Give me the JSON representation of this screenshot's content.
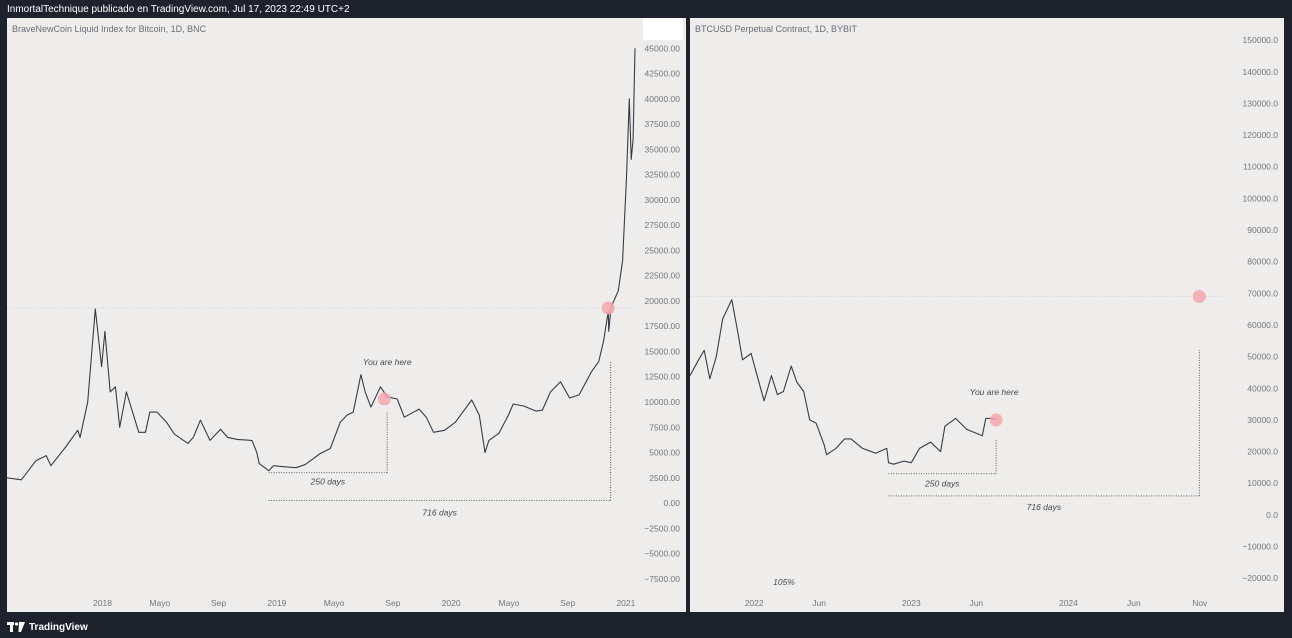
{
  "header": {
    "text": "InmortalTechnique publicado en TradingView.com, Jul 17, 2023 22:49 UTC+2"
  },
  "footer": {
    "brand": "TradingView",
    "logo_icon": "tradingview-logo-icon"
  },
  "colors": {
    "background": "#1e222d",
    "panel": "#eeedeb",
    "line": "#3a3a48",
    "axis_text": "#74767e",
    "marker": "#f4a6ad",
    "dotted": "#4a4a4a"
  },
  "chart_data": [
    {
      "type": "line",
      "title": "BraveNewCoin Liquid Index for Bitcoin, 1D, BNC",
      "ylim": [
        -9000,
        48000
      ],
      "y_ticks": [
        45000,
        42500,
        40000,
        37500,
        35000,
        32500,
        30000,
        27500,
        25000,
        22500,
        20000,
        17500,
        15000,
        12500,
        10000,
        7500,
        5000,
        2500,
        0,
        -2500,
        -5000,
        -7500
      ],
      "y_tick_labels": [
        "45000.00",
        "42500.00",
        "40000.00",
        "37500.00",
        "35000.00",
        "32500.00",
        "30000.00",
        "27500.00",
        "25000.00",
        "22500.00",
        "20000.00",
        "17500.00",
        "15000.00",
        "12500.00",
        "10000.00",
        "7500.00",
        "5000.00",
        "2500.00",
        "0.00",
        "−2500.00",
        "−5000.00",
        "−7500.00"
      ],
      "xlim": [
        "2017-06-15",
        "2021-01-20"
      ],
      "x_ticks": [
        {
          "date": "2018-01-01",
          "label": "2018"
        },
        {
          "date": "2018-05-01",
          "label": "Mayo"
        },
        {
          "date": "2018-09-01",
          "label": "Sep"
        },
        {
          "date": "2019-01-01",
          "label": "2019"
        },
        {
          "date": "2019-05-01",
          "label": "Mayo"
        },
        {
          "date": "2019-09-01",
          "label": "Sep"
        },
        {
          "date": "2020-01-01",
          "label": "2020"
        },
        {
          "date": "2020-05-01",
          "label": "Mayo"
        },
        {
          "date": "2020-09-01",
          "label": "Sep"
        },
        {
          "date": "2021-01-01",
          "label": "2021"
        }
      ],
      "series": [
        {
          "x": [
            "2017-06-15",
            "2017-07-15",
            "2017-08-15",
            "2017-09-05",
            "2017-09-15",
            "2017-10-15",
            "2017-11-10",
            "2017-11-15",
            "2017-12-01",
            "2017-12-17",
            "2017-12-30",
            "2018-01-06",
            "2018-01-17",
            "2018-01-28",
            "2018-02-06",
            "2018-02-20",
            "2018-03-05",
            "2018-03-18",
            "2018-04-01",
            "2018-04-10",
            "2018-04-25",
            "2018-05-15",
            "2018-06-01",
            "2018-06-29",
            "2018-07-10",
            "2018-07-25",
            "2018-08-14",
            "2018-09-05",
            "2018-09-20",
            "2018-10-10",
            "2018-11-10",
            "2018-11-20",
            "2018-11-25",
            "2018-12-15",
            "2018-12-25",
            "2019-01-15",
            "2019-02-10",
            "2019-03-01",
            "2019-04-02",
            "2019-04-23",
            "2019-05-14",
            "2019-05-28",
            "2019-06-10",
            "2019-06-26",
            "2019-07-05",
            "2019-07-17",
            "2019-08-06",
            "2019-08-20",
            "2019-09-10",
            "2019-09-25",
            "2019-10-26",
            "2019-11-10",
            "2019-11-25",
            "2019-12-18",
            "2020-01-10",
            "2020-02-13",
            "2020-02-29",
            "2020-03-12",
            "2020-03-20",
            "2020-04-10",
            "2020-04-30",
            "2020-05-10",
            "2020-06-01",
            "2020-06-27",
            "2020-07-10",
            "2020-07-27",
            "2020-08-17",
            "2020-09-05",
            "2020-09-25",
            "2020-10-21",
            "2020-11-05",
            "2020-11-15",
            "2020-11-25",
            "2020-11-26",
            "2020-12-01",
            "2020-12-16",
            "2020-12-25",
            "2021-01-02",
            "2021-01-08",
            "2021-01-12",
            "2021-01-16",
            "2021-01-20"
          ],
          "y": [
            2500,
            2300,
            4200,
            4700,
            3700,
            5500,
            7200,
            6500,
            10000,
            19200,
            13500,
            17000,
            11000,
            11500,
            7500,
            11000,
            9000,
            7000,
            7000,
            9000,
            9000,
            8000,
            6800,
            5900,
            6500,
            8200,
            6200,
            7300,
            6500,
            6300,
            6200,
            5000,
            3900,
            3200,
            3700,
            3600,
            3500,
            3800,
            4900,
            5400,
            8000,
            8700,
            9000,
            12700,
            11000,
            9500,
            11500,
            10500,
            10300,
            8500,
            9300,
            8500,
            7000,
            7200,
            8000,
            10200,
            8700,
            5000,
            6200,
            6900,
            8700,
            9800,
            9600,
            9100,
            9200,
            11000,
            12000,
            10400,
            10700,
            13000,
            14000,
            16000,
            19000,
            17000,
            19400,
            21000,
            24000,
            32000,
            40000,
            34000,
            36000,
            45000
          ]
        }
      ],
      "annotations": [
        {
          "text": "You are here",
          "type": "label"
        },
        {
          "text": "250 days",
          "type": "range"
        },
        {
          "text": "716 days",
          "type": "range"
        }
      ],
      "markers": [
        {
          "x": "2019-08-14",
          "y": 10300
        },
        {
          "x": "2020-11-25",
          "y": 19300
        }
      ],
      "hline": 19300,
      "range_brackets": [
        {
          "from": "2018-12-15",
          "to": "2019-08-20",
          "y": 3000,
          "label": "250 days"
        },
        {
          "from": "2018-12-15",
          "to": "2020-11-30",
          "y": 250,
          "label": "716 days"
        }
      ]
    },
    {
      "type": "line",
      "title": "BTCUSD Perpetual Contract, 1D, BYBIT",
      "ylim": [
        -25000,
        157000
      ],
      "y_ticks": [
        150000,
        140000,
        130000,
        120000,
        110000,
        100000,
        90000,
        80000,
        70000,
        60000,
        50000,
        40000,
        30000,
        20000,
        10000,
        0,
        -10000,
        -20000
      ],
      "y_tick_labels": [
        "150000.0",
        "140000.0",
        "130000.0",
        "120000.0",
        "110000.0",
        "100000.0",
        "90000.0",
        "80000.0",
        "70000.0",
        "60000.0",
        "50000.0",
        "40000.0",
        "30000.0",
        "20000.0",
        "10000.0",
        "0.0",
        "−10000.0",
        "−20000.0"
      ],
      "xlim": [
        "2021-08-05",
        "2024-12-25"
      ],
      "x_ticks": [
        {
          "date": "2022-01-01",
          "label": "2022"
        },
        {
          "date": "2022-06-01",
          "label": "Jun"
        },
        {
          "date": "2023-01-01",
          "label": "2023"
        },
        {
          "date": "2023-06-01",
          "label": "Jun"
        },
        {
          "date": "2024-01-01",
          "label": "2024"
        },
        {
          "date": "2024-06-01",
          "label": "Jun"
        },
        {
          "date": "2024-11-01",
          "label": "Nov"
        }
      ],
      "series": [
        {
          "x": [
            "2021-08-05",
            "2021-08-25",
            "2021-09-07",
            "2021-09-20",
            "2021-10-05",
            "2021-10-20",
            "2021-11-10",
            "2021-11-25",
            "2021-12-05",
            "2021-12-25",
            "2022-01-10",
            "2022-01-24",
            "2022-02-10",
            "2022-02-24",
            "2022-03-10",
            "2022-03-28",
            "2022-04-10",
            "2022-04-26",
            "2022-05-10",
            "2022-05-25",
            "2022-06-13",
            "2022-06-18",
            "2022-07-10",
            "2022-07-30",
            "2022-08-14",
            "2022-09-10",
            "2022-10-10",
            "2022-11-05",
            "2022-11-09",
            "2022-11-21",
            "2022-12-15",
            "2023-01-01",
            "2023-01-20",
            "2023-02-15",
            "2023-03-10",
            "2023-03-20",
            "2023-04-14",
            "2023-05-10",
            "2023-06-15",
            "2023-06-23",
            "2023-07-05",
            "2023-07-17"
          ],
          "y": [
            44000,
            49000,
            52000,
            43000,
            50000,
            62000,
            68000,
            57000,
            49000,
            51000,
            43000,
            36000,
            44000,
            38000,
            39000,
            47000,
            42000,
            39000,
            30000,
            29000,
            22000,
            19000,
            21000,
            24000,
            24000,
            21000,
            19500,
            21000,
            16500,
            16000,
            17000,
            16500,
            21000,
            23000,
            20000,
            28000,
            30500,
            27000,
            25000,
            30500,
            30500,
            30000
          ]
        }
      ],
      "annotations": [
        {
          "text": "You are here",
          "type": "label"
        },
        {
          "text": "250 days",
          "type": "range"
        },
        {
          "text": "716 days",
          "type": "range"
        },
        {
          "text": "105%",
          "type": "label"
        }
      ],
      "markers": [
        {
          "x": "2023-07-17",
          "y": 30000
        },
        {
          "x": "2024-10-31",
          "y": 69000
        }
      ],
      "hline": 69000,
      "range_brackets": [
        {
          "from": "2022-11-09",
          "to": "2023-07-17",
          "y": 13000,
          "label": "250 days"
        },
        {
          "from": "2022-11-09",
          "to": "2024-10-31",
          "y": 6000,
          "label": "716 days"
        }
      ]
    }
  ]
}
